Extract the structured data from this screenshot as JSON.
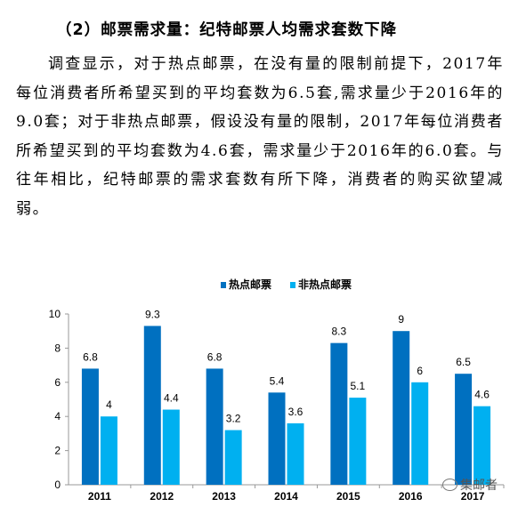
{
  "document": {
    "heading": "（2）邮票需求量：纪特邮票人均需求套数下降",
    "paragraph": "调查显示，对于热点邮票，在没有量的限制前提下，2017年每位消费者所希望买到的平均套数为6.5套,需求量少于2016年的9.0套；对于非热点邮票，假设没有量的限制，2017年每位消费者所希望买到的平均套数为4.6套，需求量少于2016年的6.0套。与往年相比，纪特邮票的需求套数有所下降，消费者的购买欲望减弱。"
  },
  "watermark": {
    "text": "集邮者",
    "icon": "wechat-icon"
  },
  "chart_data": {
    "type": "bar",
    "title": "",
    "xlabel": "",
    "ylabel": "",
    "categories": [
      "2011",
      "2012",
      "2013",
      "2014",
      "2015",
      "2016",
      "2017"
    ],
    "series": [
      {
        "name": "热点邮票",
        "values": [
          6.8,
          9.3,
          6.8,
          5.4,
          8.3,
          9,
          6.5
        ],
        "labels": [
          "6.8",
          "9.3",
          "6.8",
          "5.4",
          "8.3",
          "9",
          "6.5"
        ],
        "color": "#0070C0"
      },
      {
        "name": "非热点邮票",
        "values": [
          4,
          4.4,
          3.2,
          3.6,
          5.1,
          6,
          4.6
        ],
        "labels": [
          "4",
          "4.4",
          "3.2",
          "3.6",
          "5.1",
          "6",
          "4.6"
        ],
        "color": "#00B0F0"
      }
    ],
    "ylim": [
      0,
      10
    ],
    "yticks": [
      0,
      2,
      4,
      6,
      8,
      10
    ],
    "grid": false,
    "legend": "top-center"
  }
}
